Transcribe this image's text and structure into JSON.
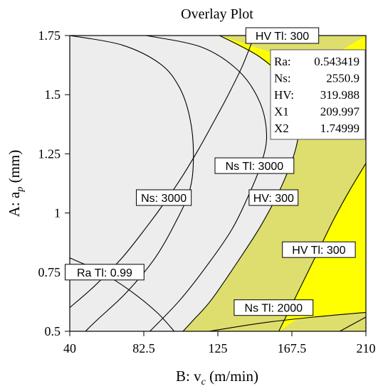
{
  "chart_data": {
    "type": "overlay contour plot",
    "title": "Overlay Plot",
    "xlabel": "B: v",
    "xlabel_sub": "c",
    "xlabel_unit": " (m/min)",
    "ylabel": "A: a",
    "ylabel_sub": "p",
    "ylabel_unit": " (mm)",
    "xlim": [
      40,
      210
    ],
    "ylim": [
      0.5,
      1.75
    ],
    "xticks": [
      "40",
      "82.5",
      "125",
      "167.5",
      "210"
    ],
    "yticks": [
      "0.5",
      "0.75",
      "1",
      "1.25",
      "1.5",
      "1.75"
    ],
    "regions": [
      {
        "name": "feasible",
        "color": "#ffff00"
      },
      {
        "name": "infeasible",
        "color": "#dede6e"
      },
      {
        "name": "background",
        "color": "#ededed"
      }
    ],
    "contours": [
      {
        "label": "Ns: 3000",
        "points": [
          [
            40,
            1.75
          ],
          [
            70,
            1.71
          ],
          [
            92,
            1.63
          ],
          [
            103,
            1.53
          ],
          [
            109,
            1.4
          ],
          [
            111,
            1.25
          ],
          [
            109,
            1.1
          ],
          [
            100,
            0.95
          ],
          [
            88,
            0.8
          ],
          [
            72,
            0.66
          ],
          [
            56,
            0.55
          ],
          [
            49,
            0.5
          ]
        ]
      },
      {
        "label": "Ns Tl:  3000",
        "points": [
          [
            84,
            1.75
          ],
          [
            116,
            1.7
          ],
          [
            137,
            1.6
          ],
          [
            149,
            1.47
          ],
          [
            153,
            1.33
          ],
          [
            150,
            1.21
          ],
          [
            143,
            1.08
          ],
          [
            133,
            0.93
          ],
          [
            119,
            0.78
          ],
          [
            103,
            0.63
          ],
          [
            86,
            0.5
          ]
        ]
      },
      {
        "label": "HV: 300",
        "points": [
          [
            126,
            1.75
          ],
          [
            149,
            1.66
          ],
          [
            165,
            1.55
          ],
          [
            172,
            1.43
          ],
          [
            170,
            1.28
          ],
          [
            162,
            1.12
          ],
          [
            150,
            0.95
          ],
          [
            136,
            0.79
          ],
          [
            121,
            0.63
          ],
          [
            110,
            0.54
          ],
          [
            105,
            0.5
          ]
        ]
      },
      {
        "label": "HV Tl:  300",
        "points": [
          [
            210,
            1.21
          ],
          [
            201,
            1.1
          ],
          [
            192,
            0.98
          ],
          [
            184,
            0.86
          ],
          [
            176,
            0.74
          ],
          [
            168,
            0.62
          ],
          [
            160,
            0.5
          ]
        ]
      },
      {
        "label": "Ns Tl:  2000",
        "points": [
          [
            120,
            0.5
          ],
          [
            150,
            0.535
          ],
          [
            180,
            0.56
          ],
          [
            210,
            0.58
          ]
        ]
      },
      {
        "label": "",
        "points": [
          [
            195,
            0.5
          ],
          [
            210,
            0.56
          ]
        ]
      },
      {
        "label": "Ra Tl:  0.99",
        "points": [
          [
            40,
            0.81
          ],
          [
            58,
            0.75
          ],
          [
            75,
            0.67
          ],
          [
            90,
            0.58
          ],
          [
            100,
            0.5
          ]
        ]
      },
      {
        "label": "",
        "points": [
          [
            40,
            0.6
          ],
          [
            54,
            0.69
          ],
          [
            70,
            0.81
          ],
          [
            84,
            0.94
          ],
          [
            95,
            1.05
          ],
          [
            105,
            1.16
          ],
          [
            114,
            1.27
          ],
          [
            123,
            1.39
          ],
          [
            131,
            1.5
          ],
          [
            139,
            1.62
          ],
          [
            146,
            1.75
          ]
        ]
      }
    ],
    "contour_labels": [
      {
        "text": "Ns: 3000",
        "at": [
          94,
          1.065
        ]
      },
      {
        "text": "Ns Tl:  3000",
        "at": [
          146,
          1.2
        ]
      },
      {
        "text": "HV: 300",
        "at": [
          157,
          1.065
        ]
      },
      {
        "text": "HV Tl:  300",
        "at": [
          183,
          0.845
        ]
      },
      {
        "text": "Ns Tl:  2000",
        "at": [
          157,
          0.6
        ]
      },
      {
        "text": "Ra Tl:  0.99",
        "at": [
          60,
          0.75
        ]
      },
      {
        "text": "HV Tl:  300",
        "at": [
          162,
          1.75
        ]
      }
    ],
    "flag_point": {
      "x": 209.997,
      "y": 1.74999
    },
    "flag": [
      {
        "key": "Ra:",
        "value": "0.543419"
      },
      {
        "key": "Ns:",
        "value": "2550.9"
      },
      {
        "key": "HV:",
        "value": "319.988"
      },
      {
        "key": "X1",
        "value": "209.997"
      },
      {
        "key": "X2",
        "value": "1.74999"
      }
    ]
  }
}
